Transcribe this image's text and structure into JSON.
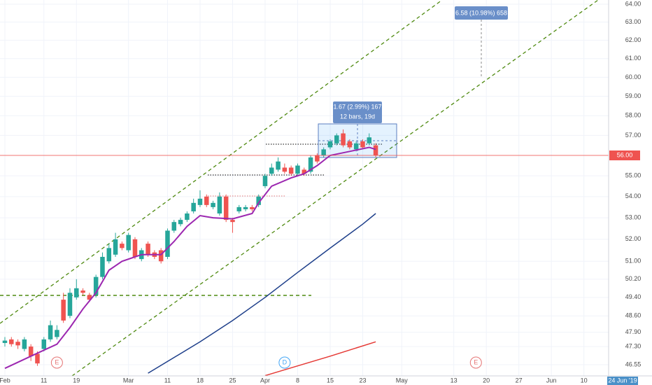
{
  "chart_data": {
    "type": "candlestick",
    "log_scale": true,
    "grid": true,
    "up_color": "#26a69a",
    "down_color": "#ef5350",
    "xlim": [
      -0.75,
      92.8
    ],
    "ylim": [
      46.09,
      64.24
    ],
    "xticks": [
      {
        "value": 0,
        "label": "Feb"
      },
      {
        "value": 6,
        "label": "11"
      },
      {
        "value": 11,
        "label": "19"
      },
      {
        "value": 19,
        "label": "Mar"
      },
      {
        "value": 25,
        "label": "11"
      },
      {
        "value": 30,
        "label": "18"
      },
      {
        "value": 35,
        "label": "25"
      },
      {
        "value": 40,
        "label": "Apr"
      },
      {
        "value": 45,
        "label": "8"
      },
      {
        "value": 50,
        "label": "15"
      },
      {
        "value": 55,
        "label": "23"
      },
      {
        "value": 61,
        "label": "May"
      },
      {
        "value": 69,
        "label": "13"
      },
      {
        "value": 74,
        "label": "20"
      },
      {
        "value": 79,
        "label": "27"
      },
      {
        "value": 84,
        "label": "Jun"
      },
      {
        "value": 89,
        "label": "10"
      }
    ],
    "yticks": [
      {
        "value": 46.55,
        "label": "46.55"
      },
      {
        "value": 47.3,
        "label": "47.30"
      },
      {
        "value": 47.9,
        "label": "47.90"
      },
      {
        "value": 48.6,
        "label": "48.60"
      },
      {
        "value": 49.4,
        "label": "49.40"
      },
      {
        "value": 50.2,
        "label": "50.20"
      },
      {
        "value": 51,
        "label": "51.00"
      },
      {
        "value": 52,
        "label": "52.00"
      },
      {
        "value": 53,
        "label": "53.00"
      },
      {
        "value": 54,
        "label": "54.00"
      },
      {
        "value": 55,
        "label": "55.00"
      },
      {
        "value": 57,
        "label": "57.00"
      },
      {
        "value": 58,
        "label": "58.00"
      },
      {
        "value": 59,
        "label": "59.00"
      },
      {
        "value": 60,
        "label": "60.00"
      },
      {
        "value": 61,
        "label": "61.00"
      },
      {
        "value": 62,
        "label": "62.00"
      },
      {
        "value": 63,
        "label": "63.00"
      },
      {
        "value": 64,
        "label": "64.00"
      }
    ],
    "candles": {
      "x": [
        0,
        1,
        2,
        3,
        4,
        5,
        6,
        7,
        8,
        9,
        10,
        11,
        12,
        13,
        14,
        15,
        16,
        17,
        18,
        19,
        20,
        21,
        22,
        23,
        24,
        25,
        26,
        27,
        28,
        29,
        30,
        31,
        32,
        33,
        34,
        35,
        36,
        37,
        38,
        39,
        40,
        41,
        42,
        43,
        44,
        45,
        46,
        47,
        48,
        49,
        50,
        51,
        52,
        53,
        54,
        55,
        56,
        57
      ],
      "open": [
        47.45,
        47.6,
        47.5,
        47.2,
        47.3,
        47.0,
        47.2,
        47.6,
        47.7,
        49.3,
        48.6,
        49.4,
        49.7,
        49.5,
        49.5,
        50.3,
        51.0,
        51.3,
        51.8,
        51.5,
        52.0,
        51.1,
        51.8,
        51.4,
        51.5,
        51.2,
        52.4,
        52.7,
        52.9,
        53.3,
        53.6,
        54.0,
        53.5,
        53.2,
        54.0,
        52.9,
        53.3,
        53.4,
        53.5,
        53.6,
        54.5,
        55.1,
        55.3,
        55.4,
        55.4,
        55.1,
        55.3,
        55.2,
        56.0,
        56.0,
        56.4,
        56.6,
        57.1,
        56.7,
        56.3,
        56.7,
        56.6,
        56.5
      ],
      "high": [
        47.7,
        47.7,
        47.6,
        47.7,
        47.4,
        47.1,
        47.7,
        48.4,
        48.2,
        49.6,
        49.8,
        50.2,
        49.8,
        49.6,
        50.4,
        51.4,
        51.8,
        52.3,
        51.9,
        52.3,
        52.1,
        51.6,
        51.9,
        51.5,
        51.6,
        52.5,
        52.9,
        53.0,
        53.3,
        53.9,
        54.3,
        54.1,
        53.8,
        54.2,
        54.1,
        53.0,
        53.6,
        53.6,
        53.6,
        54.1,
        55.1,
        55.6,
        55.9,
        55.6,
        55.5,
        55.6,
        55.4,
        56.0,
        56.1,
        56.4,
        56.8,
        57.1,
        57.3,
        56.8,
        56.7,
        56.8,
        57.1,
        56.6
      ],
      "low": [
        47.3,
        47.3,
        47.2,
        47.1,
        46.7,
        46.5,
        47.1,
        47.5,
        47.6,
        48.3,
        48.5,
        49.3,
        49.5,
        49.2,
        49.4,
        50.2,
        50.9,
        51.2,
        51.5,
        51.4,
        51.1,
        51.0,
        51.2,
        51.1,
        50.9,
        51.1,
        52.3,
        52.6,
        52.8,
        53.2,
        53.5,
        53.5,
        53.4,
        53.1,
        52.8,
        52.3,
        53.2,
        53.3,
        53.3,
        53.5,
        54.4,
        55.0,
        55.2,
        55.1,
        55.0,
        55.0,
        55.0,
        55.1,
        55.6,
        55.9,
        56.3,
        56.5,
        56.4,
        56.3,
        56.2,
        56.3,
        56.5,
        55.9
      ],
      "close": [
        47.55,
        47.4,
        47.35,
        47.6,
        46.9,
        46.6,
        47.6,
        48.2,
        48.0,
        48.4,
        49.6,
        49.8,
        49.6,
        49.3,
        50.3,
        51.2,
        51.6,
        52.0,
        51.6,
        52.2,
        51.2,
        51.5,
        51.3,
        51.2,
        51.0,
        52.4,
        52.8,
        52.9,
        53.2,
        53.7,
        53.9,
        53.6,
        53.7,
        54.0,
        52.9,
        52.8,
        53.5,
        53.5,
        53.4,
        54.0,
        55.0,
        55.4,
        55.7,
        55.2,
        55.1,
        55.5,
        55.1,
        55.9,
        55.7,
        56.3,
        56.7,
        57.0,
        56.5,
        56.4,
        56.6,
        56.4,
        56.9,
        56.0
      ]
    },
    "lines": [
      {
        "color": "#9c27b0",
        "x": [
          0,
          4,
          8,
          10,
          12,
          14,
          16,
          18,
          21,
          24,
          26,
          28,
          30,
          32,
          35,
          38,
          39,
          41,
          44,
          46,
          48,
          50,
          53,
          56,
          57
        ],
        "values": [
          46.4,
          46.9,
          47.4,
          48.1,
          48.9,
          49.6,
          50.6,
          51.0,
          51.3,
          51.3,
          51.9,
          52.6,
          53.1,
          53.0,
          52.95,
          53.2,
          53.7,
          54.5,
          54.9,
          55.1,
          55.5,
          56.0,
          56.2,
          56.4,
          56.3
        ]
      },
      {
        "color": "#1e3f8a",
        "x": [
          22,
          30,
          35,
          40,
          45,
          50,
          55,
          57
        ],
        "values": [
          46.2,
          47.5,
          48.4,
          49.4,
          50.5,
          51.6,
          52.7,
          53.2
        ]
      },
      {
        "color": "#e53935",
        "x": [
          40,
          45,
          50,
          57
        ],
        "values": [
          46.1,
          46.5,
          46.9,
          47.5
        ]
      }
    ],
    "last_price": {
      "value": 56,
      "label": "56.00"
    },
    "events": [
      {
        "label": "E",
        "x": 8,
        "color": "#e57373"
      },
      {
        "label": "D",
        "x": 43,
        "color": "#42a5f5"
      },
      {
        "label": "E",
        "x": 72.4,
        "color": "#e57373"
      }
    ],
    "annotations": [
      "6.58 (10.98%) 658",
      "1.67 (2.99%) 167",
      "12 bars, 19d"
    ],
    "crosshair_x": {
      "value": 95,
      "label": "24 Jun '19"
    }
  }
}
